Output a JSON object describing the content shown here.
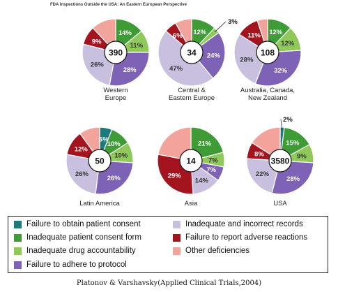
{
  "figure_title": "FDA Inspections Outside the USA: An Eastern European Perspective",
  "caption": "Platonov & Varshavsky(Applied Clinical Trials,2004)",
  "categories": [
    {
      "key": "consent",
      "label": "Failure to obtain patient consent",
      "color": "#1c7a7a"
    },
    {
      "key": "form",
      "label": "Inadequate patient consent form",
      "color": "#3e9b35"
    },
    {
      "key": "drug",
      "label": "Inadequate drug accountability",
      "color": "#8fc95a"
    },
    {
      "key": "protocol",
      "label": "Failure to adhere to protocol",
      "color": "#7d62b5"
    },
    {
      "key": "records",
      "label": "Inadequate and incorrect records",
      "color": "#c9c0df"
    },
    {
      "key": "adverse",
      "label": "Failure to report adverse reactions",
      "color": "#a3141f"
    },
    {
      "key": "other",
      "label": "Other deficiencies",
      "color": "#f2a39b"
    }
  ],
  "chart_data": [
    {
      "type": "pie",
      "region": "Western Europe",
      "total": "390",
      "slices": [
        {
          "category": "consent",
          "value": 0,
          "label": ""
        },
        {
          "category": "form",
          "value": 14,
          "label": "14%"
        },
        {
          "category": "drug",
          "value": 11,
          "label": "11%"
        },
        {
          "category": "protocol",
          "value": 28,
          "label": "28%"
        },
        {
          "category": "records",
          "value": 26,
          "label": "26%"
        },
        {
          "category": "adverse",
          "value": 9,
          "label": "9%"
        },
        {
          "category": "other",
          "value": 12,
          "label": ""
        }
      ]
    },
    {
      "type": "pie",
      "region": "Central & Eastern Europe",
      "total": "34",
      "slices": [
        {
          "category": "consent",
          "value": 0,
          "label": ""
        },
        {
          "category": "form",
          "value": 12,
          "label": "12%"
        },
        {
          "category": "drug",
          "value": 3,
          "label": "3%"
        },
        {
          "category": "protocol",
          "value": 24,
          "label": "24%"
        },
        {
          "category": "records",
          "value": 47,
          "label": "47%"
        },
        {
          "category": "adverse",
          "value": 6,
          "label": "6%"
        },
        {
          "category": "other",
          "value": 8,
          "label": ""
        }
      ]
    },
    {
      "type": "pie",
      "region": "Australia, Canada, New Zealand",
      "total": "108",
      "slices": [
        {
          "category": "consent",
          "value": 0,
          "label": ""
        },
        {
          "category": "form",
          "value": 12,
          "label": "12%"
        },
        {
          "category": "drug",
          "value": 12,
          "label": "12%"
        },
        {
          "category": "protocol",
          "value": 32,
          "label": "32%"
        },
        {
          "category": "records",
          "value": 28,
          "label": "28%"
        },
        {
          "category": "adverse",
          "value": 11,
          "label": "11%"
        },
        {
          "category": "other",
          "value": 5,
          "label": ""
        }
      ]
    },
    {
      "type": "pie",
      "region": "Latin America",
      "total": "50",
      "slices": [
        {
          "category": "consent",
          "value": 6,
          "label": "6%"
        },
        {
          "category": "form",
          "value": 10,
          "label": "10%"
        },
        {
          "category": "drug",
          "value": 10,
          "label": "10%"
        },
        {
          "category": "protocol",
          "value": 26,
          "label": "26%"
        },
        {
          "category": "records",
          "value": 26,
          "label": "26%"
        },
        {
          "category": "adverse",
          "value": 12,
          "label": "12%"
        },
        {
          "category": "other",
          "value": 10,
          "label": ""
        }
      ]
    },
    {
      "type": "pie",
      "region": "Asia",
      "total": "14",
      "slices": [
        {
          "category": "consent",
          "value": 0,
          "label": ""
        },
        {
          "category": "form",
          "value": 21,
          "label": "21%"
        },
        {
          "category": "drug",
          "value": 7,
          "label": "7%"
        },
        {
          "category": "protocol",
          "value": 7,
          "label": "7%"
        },
        {
          "category": "records",
          "value": 14,
          "label": "14%"
        },
        {
          "category": "adverse",
          "value": 29,
          "label": "29%"
        },
        {
          "category": "other",
          "value": 22,
          "label": ""
        }
      ]
    },
    {
      "type": "pie",
      "region": "USA",
      "total": "3580",
      "slices": [
        {
          "category": "consent",
          "value": 2,
          "label": "2%"
        },
        {
          "category": "form",
          "value": 15,
          "label": "15%"
        },
        {
          "category": "drug",
          "value": 9,
          "label": "9%"
        },
        {
          "category": "protocol",
          "value": 28,
          "label": "28%"
        },
        {
          "category": "records",
          "value": 22,
          "label": "22%"
        },
        {
          "category": "adverse",
          "value": 8,
          "label": "8%"
        },
        {
          "category": "other",
          "value": 16,
          "label": ""
        }
      ]
    }
  ]
}
